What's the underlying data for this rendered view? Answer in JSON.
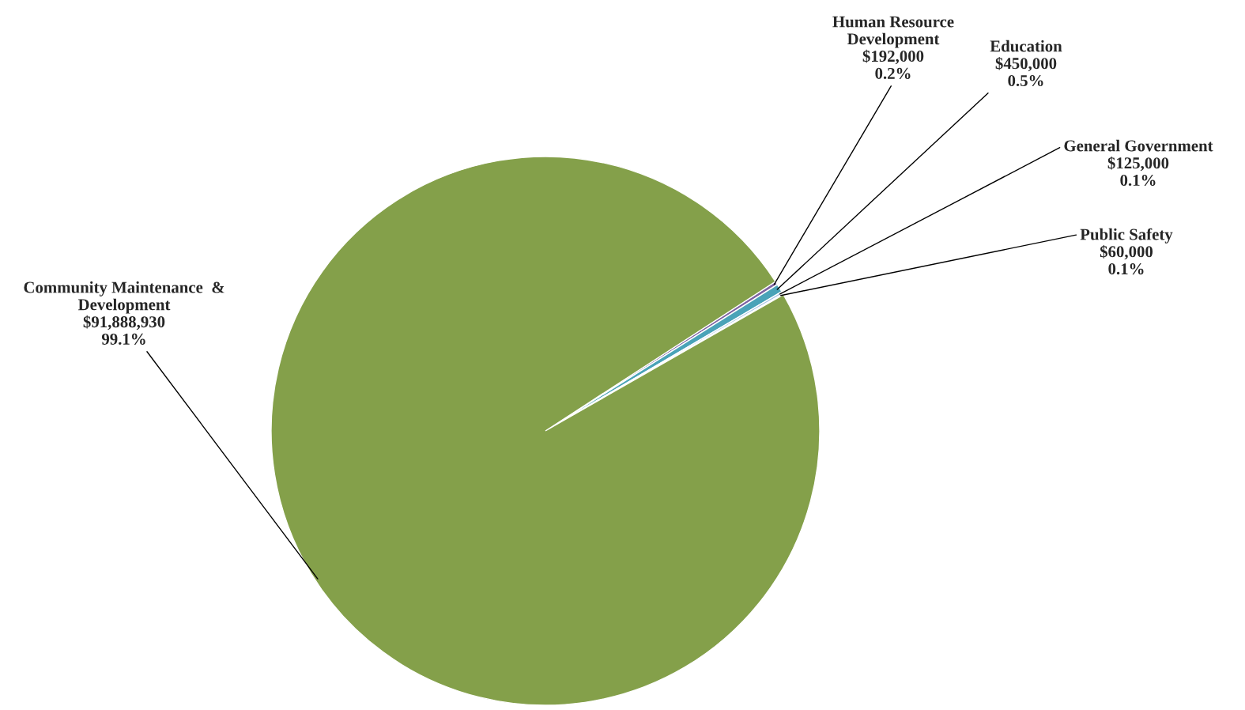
{
  "chart_data": {
    "type": "pie",
    "categories": [
      "Human Resource\nDevelopment",
      "Education",
      "General Government",
      "Public Safety",
      "Community Maintenance  &\nDevelopment"
    ],
    "values": [
      192000,
      450000,
      125000,
      60000,
      91888930
    ],
    "value_labels": [
      "$192,000\n0.2%",
      "$450,000\n0.5%",
      "$125,000\n0.1%",
      "$60,000\n0.1%",
      "$91,888,930\n99.1%"
    ],
    "colors": [
      "#7f64a2",
      "#4aa3b8",
      "#a9c4e8",
      "#c0504d",
      "#84a04a"
    ],
    "legend": false
  }
}
